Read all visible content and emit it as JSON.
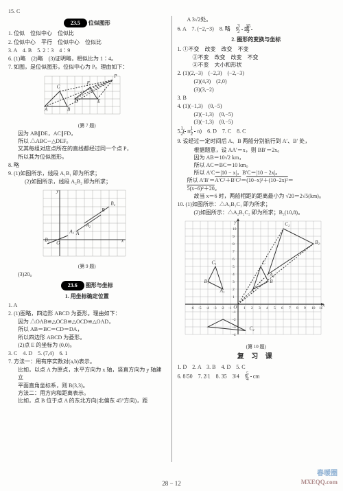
{
  "top_left": "15. C",
  "left": {
    "s235": {
      "pill": "23.5",
      "title": "位似图形",
      "lines": [
        "1. 位似　位似中心　位似比",
        "2. 位似中心　平行　位似中心　位似比",
        "3. A　4. B　5. 2∶3　4∶9",
        "6. (1)略　(2)略　(3)证明略，相似比为 1∶4。",
        "7. 如图，是位似图形，位似中心为 P。理由如下："
      ],
      "fig7_caption": "(第 7 题)",
      "after7": [
        "因为 AB∥DE，AC∥FD，",
        "所以 △ABC∽△DEF。",
        "又其每组对应点所在的直线都经过同一个点 P，",
        "所以其为位似图形。",
        "8. 略",
        "9. (1)如图所示，线段 A₁B₁ 即为所求；",
        "　 (2)如图所示，线段 A₂B₂ 即为所求；"
      ],
      "fig9_caption": "(第 9 题)",
      "after9": "(3)20。"
    },
    "s236": {
      "pill": "23.6",
      "title": "图形与坐标",
      "sub1": "1. 用坐标确定位置",
      "lines": [
        "1. A",
        "2. (1)图略，四边形 ABCD 为菱形。理由如下：",
        "因为 △OAB≌△OCB≌△OCD≌△OAD，",
        "所以 AB＝BC＝CD＝DA，",
        "所以四边形 ABCD 为菱形。",
        "(2)点 E 的坐标为 (0,0)。",
        "3. C　4. D　5. (7,4)　6. 1",
        "7. 方法一：用有序实数对(a,b)表示。",
        "比如，以点 A 为原点，水平方向为 x 轴，竖直方向为 y 轴建立",
        "平面直角坐标系，则 B(3,3)。",
        "方法二：用方向和距离表示。",
        "比如，点 B 位于点 A 的东北方向(北偏东 45°方向)，距"
      ]
    }
  },
  "right": {
    "top": [
      "A 3√2处。",
      "6. A　7. (−2,−3)　8. 略　9. 3/2 或 15/2"
    ],
    "sub2": "2. 图形的变换与坐标",
    "lines2": [
      "1. ①不变　改变　改变　不变",
      "　②不变　改变　改变　不变",
      "　③不变　大小和形状",
      "2. (1)(2,−3)　(−2,3)　(−2,−3)",
      "　 (2)(4,3)　(2,0)",
      "　 (3)(3,−2)",
      "3. B",
      "4. (1)(−1,3)　(0,−5)",
      "　 (2)(−1,3)　(0,−5)",
      "　 (3)(−1,3)　(0,−5)",
      "5. (1/2 m, 1/2 n)　6. D　7. C　8. C",
      "9. 设经过一定时间后 A、B 两船分别航行到 A′、B′ 处，",
      "　 根据题意，设 AA′＝x，则 BB′＝2x。",
      "　 因为 AB＝10√2 km，",
      "　 所以 AC＝BC＝10 km。",
      "　 所以 A′C＝|10 − x|，B′C＝|10 − 2x|。",
      "　 所以 A′B′＝√(A′C²＋B′C²)＝√((10−x)²＋(10−2x)²)＝",
      "　 √(5(x−6)²＋20)。",
      "　 故当 x＝6 时，两船相距的距离最小为 √20＝2√5(km)。",
      "10. (1)如图所示：△A₁B₁C₁ 即为所求；",
      "　 (2)如图所示：△A₂B₂C₂ 即为所求；B₂(10,8)。"
    ],
    "fig10_caption": "(第 10 题)",
    "fuxi_title": "复 习 课",
    "fuxi_lines": [
      "1. D　2. A　3. B　4. D　5. C",
      "6. 8∶50　7. 2∶1　8. 35　3∶4　9. 5/4 cm"
    ]
  },
  "footer": "28 − 12",
  "watermark_top": "春暖圈",
  "watermark_bottom": "MXEQQ.com",
  "fig7": {
    "grid_cols": 10,
    "grid_rows": 5,
    "cell": 11,
    "tri1": [
      [
        0,
        4
      ],
      [
        3,
        4
      ],
      [
        2,
        2
      ]
    ],
    "tri2": [
      [
        4,
        3
      ],
      [
        7,
        3
      ],
      [
        6,
        1.5
      ]
    ],
    "P": [
      9,
      0.5
    ],
    "labels": {
      "A": [
        0,
        4.6
      ],
      "B": [
        3,
        4.6
      ],
      "C": [
        1.6,
        1.6
      ],
      "D": [
        4,
        3.5
      ],
      "E": [
        7,
        3.5
      ],
      "F": [
        5.6,
        1.1
      ],
      "P": [
        9.2,
        0.2
      ]
    },
    "grid_color": "#999",
    "line_color": "#333",
    "dash_color": "#333"
  },
  "fig9": {
    "grid_cols": 10,
    "grid_rows": 8,
    "cell": 12,
    "axes_origin": [
      2,
      6
    ],
    "segAB": [
      [
        4,
        5
      ],
      [
        7,
        3
      ]
    ],
    "segA1B1": [
      [
        3,
        5.5
      ],
      [
        0.5,
        6.5
      ]
    ],
    "segA2B2": [
      [
        5,
        4
      ],
      [
        8,
        2
      ]
    ],
    "labels": {
      "O": [
        1.6,
        6.6
      ],
      "A": [
        4,
        5.4
      ],
      "B": [
        7.1,
        2.6
      ],
      "A₁": [
        3.2,
        5.2
      ],
      "B₁": [
        0.2,
        6.2
      ],
      "A₂": [
        5.2,
        4.4
      ],
      "B₂": [
        8.2,
        1.8
      ],
      "x": [
        9.5,
        6.3
      ],
      "y": [
        1.6,
        0.3
      ]
    },
    "grid_color": "#999",
    "line_color": "#333"
  },
  "fig10": {
    "grid_cols": 18,
    "grid_rows": 15,
    "cell": 11,
    "axes_origin": [
      7,
      11
    ],
    "x_ticks": [
      -6,
      -5,
      -4,
      -3,
      -2,
      -1,
      1,
      2,
      3,
      4,
      5,
      6,
      7,
      8,
      9,
      10,
      11
    ],
    "y_ticks": [
      -4,
      -3,
      -2,
      -1,
      1,
      2,
      3,
      4,
      5,
      6,
      7,
      8,
      9,
      10
    ],
    "triA": [
      [
        9,
        9
      ],
      [
        11,
        8
      ],
      [
        10,
        6
      ]
    ],
    "triA1": [
      [
        5,
        9
      ],
      [
        3,
        8
      ],
      [
        4,
        6
      ]
    ],
    "triA2": [
      [
        11,
        7
      ],
      [
        17,
        3
      ],
      [
        13,
        1
      ]
    ],
    "dash_lines": [
      [
        [
          7,
          11
        ],
        [
          17,
          3
        ]
      ],
      [
        [
          7,
          11
        ],
        [
          13,
          1
        ]
      ],
      [
        [
          7,
          11
        ],
        [
          11,
          7
        ]
      ]
    ],
    "labels": {
      "A": [
        8.7,
        9.4
      ],
      "B": [
        11.2,
        8.2
      ],
      "C": [
        10.2,
        5.7
      ],
      "A₁": [
        4.6,
        9.4
      ],
      "B₁": [
        2.5,
        8.2
      ],
      "C₁": [
        3.5,
        5.7
      ],
      "A₂": [
        11.2,
        7.3
      ],
      "B₂": [
        17.2,
        3
      ],
      "C₂": [
        13.2,
        0.6
      ],
      "C₂b": [
        8.5,
        14.4
      ],
      "O": [
        6.4,
        11.6
      ],
      "x": [
        18.2,
        11.3
      ],
      "y": [
        6.5,
        0.3
      ]
    },
    "triC2neg": [
      [
        5,
        13
      ],
      [
        8,
        14.5
      ],
      [
        3,
        14
      ]
    ],
    "grid_color": "#aaa",
    "line_color": "#333",
    "fill_color": "rgba(0,0,0,0)"
  }
}
